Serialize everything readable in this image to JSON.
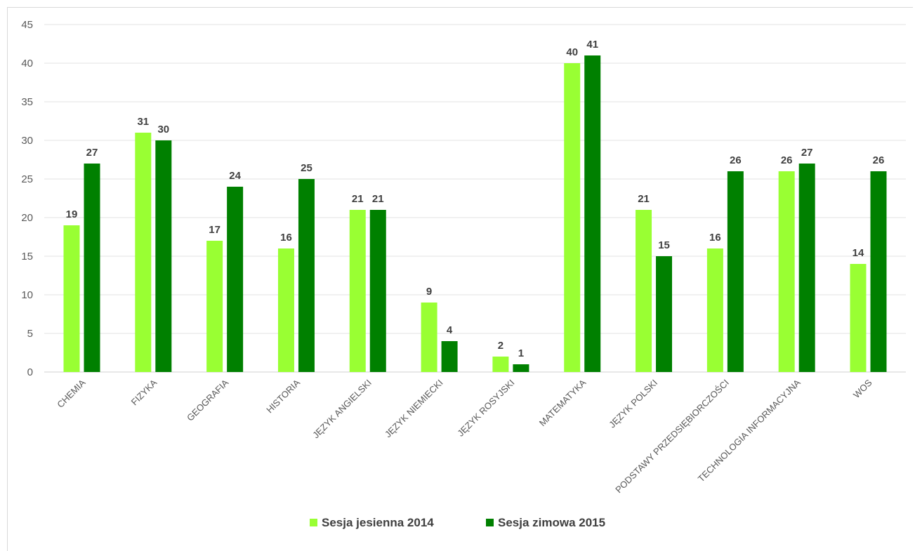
{
  "chart_data": {
    "type": "bar",
    "title": "",
    "xlabel": "",
    "ylabel": "",
    "ylim": [
      0,
      45
    ],
    "yticks": [
      0,
      5,
      10,
      15,
      20,
      25,
      30,
      35,
      40,
      45
    ],
    "grid": true,
    "legend_position": "bottom",
    "categories": [
      "CHEMIA",
      "FIZYKA",
      "GEOGRAFIA",
      "HISTORIA",
      "JĘZYK ANGIELSKI",
      "JĘZYK NIEMIECKI",
      "JĘZYK ROSYJSKI",
      "MATEMATYKA",
      "JĘZYK POLSKI",
      "PODSTAWY PRZEDSIĘBIORCZOŚCI",
      "TECHNOLOGIA INFORMACYJNA",
      "WOS"
    ],
    "series": [
      {
        "name": "Sesja jesienna 2014",
        "color": "#99ff33",
        "values": [
          19,
          31,
          17,
          16,
          21,
          9,
          2,
          40,
          21,
          16,
          26,
          14
        ]
      },
      {
        "name": "Sesja zimowa 2015",
        "color": "#008000",
        "values": [
          27,
          30,
          24,
          25,
          21,
          4,
          1,
          41,
          15,
          26,
          27,
          26
        ]
      }
    ]
  }
}
